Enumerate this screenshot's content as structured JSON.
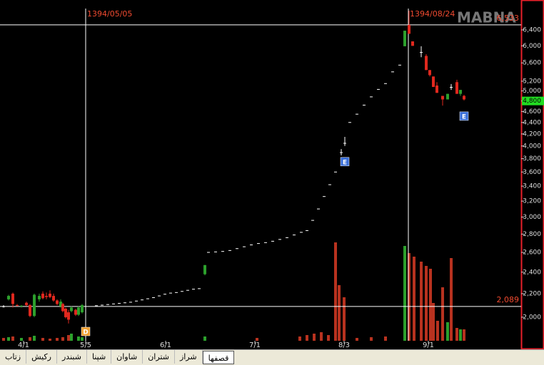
{
  "chart_data": {
    "type": "candlestick",
    "watermark": "MABNA",
    "log_scale": true,
    "ylim": [
      1756,
      7224
    ],
    "yticks": [
      {
        "value": 2000,
        "label": "2,000"
      },
      {
        "value": 2200,
        "label": "2,200"
      },
      {
        "value": 2400,
        "label": "2,400"
      },
      {
        "value": 2600,
        "label": "2,600"
      },
      {
        "value": 2800,
        "label": "2,800"
      },
      {
        "value": 3000,
        "label": "3,000"
      },
      {
        "value": 3200,
        "label": "3,200"
      },
      {
        "value": 3400,
        "label": "3,400"
      },
      {
        "value": 3600,
        "label": "3,600"
      },
      {
        "value": 3800,
        "label": "3,800"
      },
      {
        "value": 4000,
        "label": "4,000"
      },
      {
        "value": 4200,
        "label": "4,200"
      },
      {
        "value": 4400,
        "label": "4,400"
      },
      {
        "value": 4600,
        "label": "4,600"
      },
      {
        "value": 4800,
        "label": "4,800"
      },
      {
        "value": 5000,
        "label": "5,000"
      },
      {
        "value": 5200,
        "label": "5,200"
      },
      {
        "value": 5600,
        "label": "5,600"
      },
      {
        "value": 6000,
        "label": "6,000"
      },
      {
        "value": 6400,
        "label": "6,400"
      }
    ],
    "xlim": [
      0,
      146
    ],
    "xticks": [
      {
        "value": 6.6,
        "label": "4/1"
      },
      {
        "value": 24,
        "label": "5/5"
      },
      {
        "value": 46.4,
        "label": "6/1"
      },
      {
        "value": 71.4,
        "label": "7/1"
      },
      {
        "value": 96.4,
        "label": "8/3"
      },
      {
        "value": 120,
        "label": "9/1"
      }
    ],
    "up_color": "#2ca02c",
    "down_color": "#e0281e",
    "flat_color": "#ffffff",
    "candles": {
      "x": [
        1,
        2.4,
        3.6,
        4.8,
        6,
        7.4,
        8.4,
        9.6,
        11,
        12,
        13,
        14,
        15,
        16,
        17,
        17.6,
        18.4,
        19.2,
        20,
        21.2,
        22,
        23,
        57.4,
        95.6,
        96.6,
        113.4,
        114.6,
        115.6,
        118,
        119.4,
        120.4,
        121.4,
        122.4,
        124,
        125.4,
        126.4,
        128,
        129,
        130
      ],
      "open": [
        2090,
        2150,
        2200,
        2100,
        2090,
        2120,
        2100,
        2010,
        2150,
        2200,
        2180,
        2200,
        2180,
        2140,
        2090,
        2110,
        2070,
        2040,
        2050,
        2060,
        2020,
        2040,
        2380,
        3900,
        4050,
        5990,
        6530,
        6110,
        5850,
        5760,
        5440,
        5300,
        5110,
        4900,
        4830,
        5080,
        5180,
        4940,
        4900
      ],
      "high": [
        2100,
        2190,
        2210,
        2110,
        2100,
        2130,
        2110,
        2200,
        2200,
        2220,
        2210,
        2230,
        2200,
        2150,
        2150,
        2120,
        2080,
        2060,
        2090,
        2070,
        2090,
        2110,
        2470,
        3950,
        4150,
        6380,
        6920,
        6110,
        5990,
        5800,
        5440,
        5300,
        5180,
        4900,
        4940,
        5140,
        5230,
        5020,
        4920
      ],
      "low": [
        2080,
        2140,
        2080,
        2090,
        2080,
        2090,
        2000,
        2000,
        2130,
        2150,
        2150,
        2160,
        2130,
        2100,
        2080,
        2040,
        1990,
        1950,
        2040,
        2010,
        2010,
        2030,
        2370,
        3850,
        4000,
        5990,
        6300,
        6000,
        5730,
        5440,
        5300,
        5080,
        4960,
        4710,
        4830,
        5020,
        4940,
        4900,
        4810
      ],
      "close": [
        2090,
        2180,
        2110,
        2095,
        2095,
        2100,
        2010,
        2190,
        2180,
        2160,
        2170,
        2170,
        2140,
        2110,
        2130,
        2050,
        2000,
        1980,
        2080,
        2020,
        2080,
        2100,
        2470,
        3900,
        4050,
        6380,
        6300,
        6000,
        5850,
        5440,
        5330,
        5080,
        4960,
        4830,
        4940,
        5080,
        4940,
        5020,
        4830
      ]
    },
    "locked": {
      "x": [
        27,
        28.6,
        30.2,
        31.8,
        33.4,
        35,
        36.6,
        38.2,
        39.8,
        41.4,
        43,
        44.6,
        46.2,
        47.8,
        49.4,
        51,
        52.6,
        54.2,
        55.8,
        58.4,
        60.4,
        62.4,
        64.4,
        66.4,
        68.4,
        70.4,
        72.4,
        74.4,
        76.4,
        78.4,
        80.4,
        82.4,
        84.4,
        86,
        87.6,
        89.2,
        90.8,
        92.4,
        94,
        98,
        100,
        102,
        104,
        106,
        108,
        110,
        112
      ],
      "values": [
        2095,
        2100,
        2105,
        2110,
        2115,
        2120,
        2125,
        2135,
        2145,
        2155,
        2165,
        2180,
        2195,
        2205,
        2210,
        2220,
        2230,
        2240,
        2245,
        2600,
        2605,
        2610,
        2620,
        2640,
        2660,
        2680,
        2695,
        2705,
        2720,
        2740,
        2760,
        2790,
        2820,
        2840,
        2960,
        3100,
        3260,
        3420,
        3600,
        4400,
        4550,
        4720,
        4880,
        5030,
        5150,
        5400,
        5550
      ],
      "color": "#ffffff"
    },
    "volume": {
      "vlim": [
        0,
        150
      ],
      "x": [
        1,
        2.4,
        3.6,
        6,
        8.4,
        9.6,
        12,
        14,
        16,
        17.6,
        19.2,
        20,
        22,
        23,
        57.4,
        72,
        84,
        86,
        88,
        90,
        92,
        94,
        95,
        96.4,
        100,
        104,
        108,
        113.4,
        114.6,
        116,
        118,
        119.4,
        120.6,
        121.4,
        122.6,
        124,
        125.4,
        126.4,
        128,
        129,
        130
      ],
      "values": [
        4,
        5,
        6,
        4,
        5,
        7,
        4,
        3,
        4,
        5,
        8,
        10,
        6,
        5,
        6,
        4,
        6,
        8,
        10,
        12,
        8,
        138,
        78,
        61,
        4,
        5,
        6,
        133,
        123,
        118,
        111,
        105,
        101,
        53,
        28,
        75,
        26,
        116,
        18,
        16,
        16
      ],
      "colors": [
        "#b8321f",
        "#2ca02c",
        "#b8321f",
        "#2ca02c",
        "#b8321f",
        "#2ca02c",
        "#b8321f",
        "#b8321f",
        "#b8321f",
        "#b8321f",
        "#b8321f",
        "#2ca02c",
        "#2ca02c",
        "#2ca02c",
        "#2ca02c",
        "#b8321f",
        "#b8321f",
        "#b8321f",
        "#b8321f",
        "#b8321f",
        "#b8321f",
        "#b8321f",
        "#b8321f",
        "#b8321f",
        "#b8321f",
        "#b8321f",
        "#b8321f",
        "#2ca02c",
        "#b8321f",
        "#b8321f",
        "#b8321f",
        "#b8321f",
        "#b8321f",
        "#b8321f",
        "#b8321f",
        "#b8321f",
        "#2ca02c",
        "#b8321f",
        "#b8321f",
        "#2ca02c",
        "#b8321f"
      ]
    },
    "hlines": [
      {
        "value": 2089,
        "label": "2,089"
      },
      {
        "value": 6533,
        "label": "6,533"
      }
    ],
    "vlines": [
      {
        "x": 24,
        "label": "1394/05/05"
      },
      {
        "x": 114.4,
        "label": "1394/08/24"
      }
    ],
    "last_price": {
      "value": 4800,
      "label": "4,800"
    },
    "events": [
      {
        "label": "D",
        "x": 24,
        "color": "#f0a030"
      },
      {
        "label": "E",
        "x": 96.6,
        "color": "#3a6fd8"
      },
      {
        "label": "E",
        "x": 130,
        "color": "#3a6fd8"
      }
    ]
  },
  "tabs": {
    "items": [
      "زتاب",
      "رکیش",
      "شبندر",
      "شپنا",
      "شاوان",
      "شتران",
      "شراز",
      "قصفها"
    ],
    "selected": 7
  }
}
